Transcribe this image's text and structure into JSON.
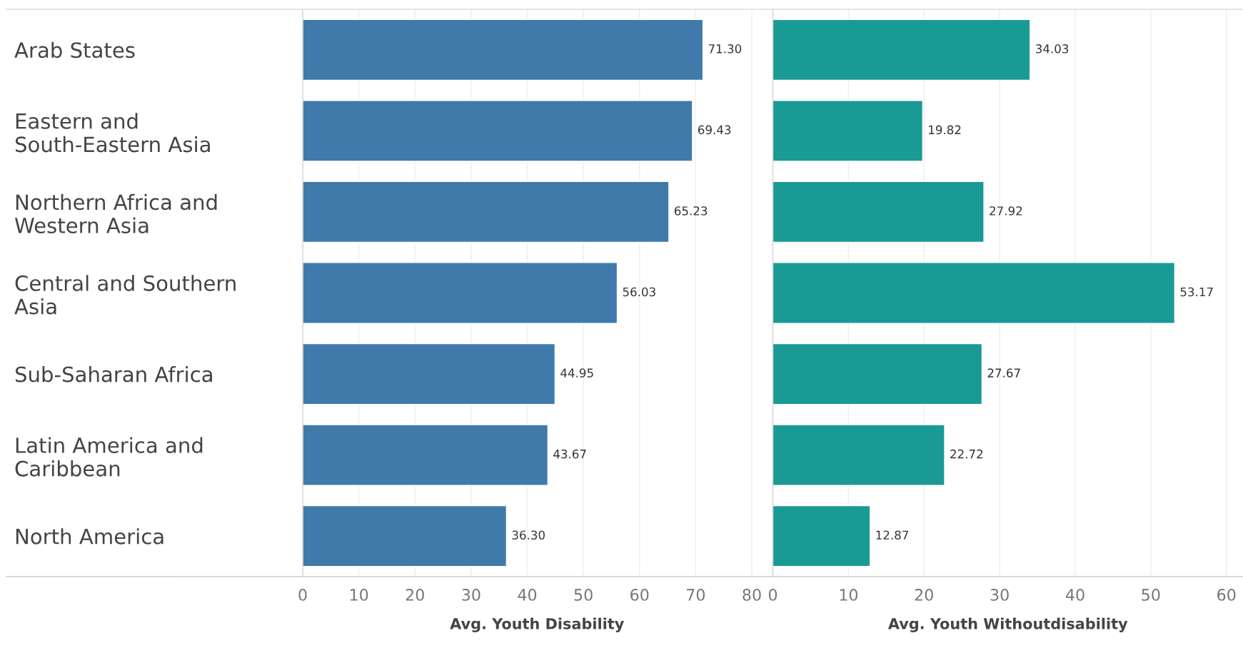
{
  "chart_data": [
    {
      "type": "bar",
      "orientation": "horizontal",
      "categories": [
        "Arab States",
        "Eastern and\nSouth-Eastern Asia",
        "Northern Africa and\nWestern Asia",
        "Central and Southern\nAsia",
        "Sub-Saharan Africa",
        "Latin America and\nCaribbean",
        "North America"
      ],
      "values": [
        71.3,
        69.43,
        65.23,
        56.03,
        44.95,
        43.67,
        36.3
      ],
      "value_labels": [
        "71.30",
        "69.43",
        "65.23",
        "56.03",
        "44.95",
        "43.67",
        "36.30"
      ],
      "color": "#3f7aab",
      "xlabel": "Avg. Youth Disability",
      "xlim": [
        0,
        83.5
      ],
      "xticks": [
        0,
        10,
        20,
        30,
        40,
        50,
        60,
        70,
        80
      ],
      "grid": "x"
    },
    {
      "type": "bar",
      "orientation": "horizontal",
      "categories": [
        null,
        null,
        null,
        null,
        null,
        null,
        null
      ],
      "values": [
        34.03,
        19.82,
        27.92,
        53.17,
        27.67,
        22.72,
        12.87
      ],
      "value_labels": [
        "34.03",
        "19.82",
        "27.92",
        "53.17",
        "27.67",
        "22.72",
        "12.87"
      ],
      "color": "#1a9a94",
      "xlabel": "Avg. Youth Withoutdisability",
      "xlim": [
        0,
        62.2
      ],
      "xticks": [
        0,
        10,
        20,
        30,
        40,
        50,
        60
      ],
      "grid": "x",
      "tick_labels": "x"
    }
  ]
}
